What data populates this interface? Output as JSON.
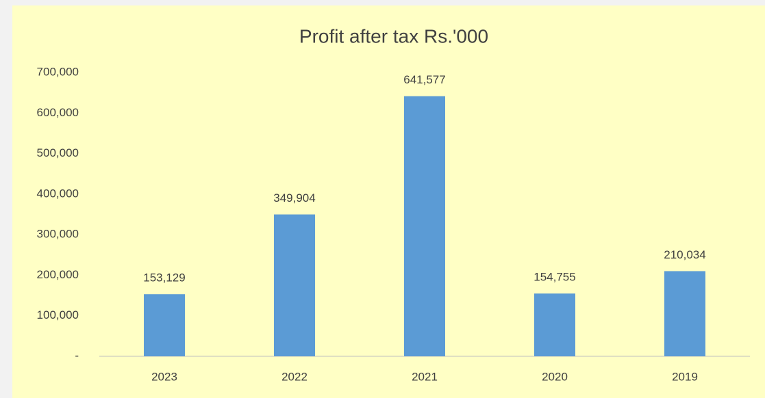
{
  "chart_data": {
    "type": "bar",
    "title": "Profit after tax  Rs.'000",
    "categories": [
      "2023",
      "2022",
      "2021",
      "2020",
      "2019"
    ],
    "values": [
      153129,
      349904,
      641577,
      154755,
      210034
    ],
    "value_labels": [
      "153,129",
      "349,904",
      "641,577",
      "154,755",
      "210,034"
    ],
    "color": "#5b9bd5",
    "ylim": [
      0,
      700000
    ],
    "yticks": [
      {
        "value": 0,
        "label": "-"
      },
      {
        "value": 100000,
        "label": "100,000"
      },
      {
        "value": 200000,
        "label": "200,000"
      },
      {
        "value": 300000,
        "label": "300,000"
      },
      {
        "value": 400000,
        "label": "400,000"
      },
      {
        "value": 500000,
        "label": "500,000"
      },
      {
        "value": 600000,
        "label": "600,000"
      },
      {
        "value": 700000,
        "label": "700,000"
      }
    ],
    "grid": false
  }
}
